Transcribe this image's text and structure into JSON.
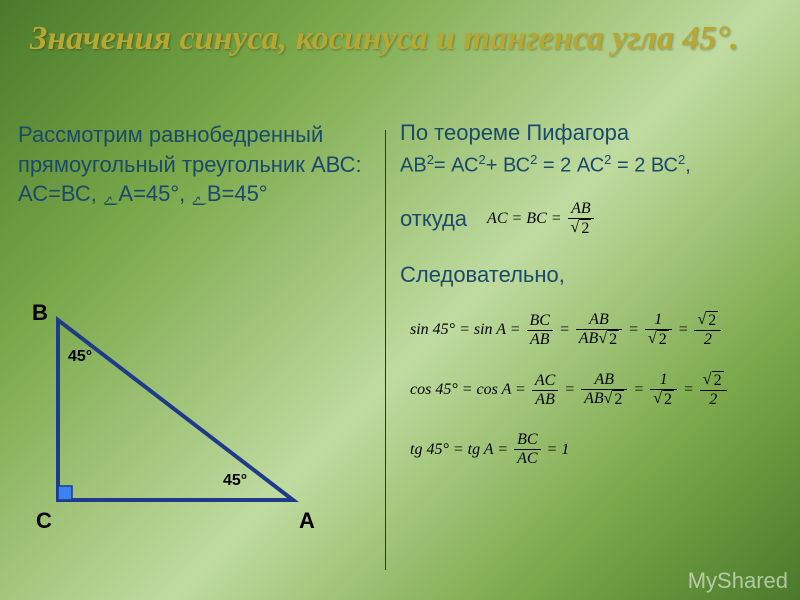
{
  "title": "Значения синуса, косинуса и тангенса угла 45°.",
  "left": {
    "paragraph": "Рассмотрим равнобедренный прямоугольный треугольник АВС: АС=ВС, ﮮА=45°, ﮮВ=45°"
  },
  "right": {
    "pythagoras_label": "По теореме Пифагора",
    "pythagoras_formula": "АВ²= АС²+ ВС² = 2 АС² = 2 ВС²,",
    "whence_label": "откуда",
    "therefore_label": "Следовательно,",
    "ac_eq_bc": {
      "lhs": "AC = BC =",
      "num": "AB",
      "den_sqrt": "2"
    },
    "sin": {
      "lhs": "sin 45° = sin A =",
      "f1n": "BC",
      "f1d": "AB",
      "f2n": "AB",
      "f2d_before": "AB",
      "f2d_sqrt": "2",
      "f3n": "1",
      "f3d_sqrt": "2",
      "f4n_sqrt": "2",
      "f4d": "2"
    },
    "cos": {
      "lhs": "cos 45° = cos A =",
      "f1n": "AC",
      "f1d": "AB",
      "f2n": "AB",
      "f2d_before": "AB",
      "f2d_sqrt": "2",
      "f3n": "1",
      "f3d_sqrt": "2",
      "f4n_sqrt": "2",
      "f4d": "2"
    },
    "tg": {
      "lhs": "tg 45° = tg A =",
      "f1n": "BC",
      "f1d": "AC",
      "rhs": "= 1"
    }
  },
  "triangle": {
    "points": {
      "B": [
        40,
        20
      ],
      "C": [
        40,
        200
      ],
      "A": [
        275,
        200
      ]
    },
    "stroke": "#1e3a8a",
    "stroke_width": 4,
    "square_fill": "#3b82f6",
    "square_size": 14,
    "labels": {
      "A": "А",
      "B": "В",
      "C": "С"
    },
    "angles": {
      "atB": "45°",
      "atA": "45°"
    },
    "label_font_size": 22,
    "angle_font_size": 16
  },
  "colors": {
    "title_color": "#b8a832",
    "text_color": "#1a4a6a",
    "bg_gradient": [
      "#4a7a2a",
      "#7aa84a",
      "#c0dba0",
      "#7aa84a",
      "#4a7a2a"
    ]
  },
  "watermark": "MyShared"
}
